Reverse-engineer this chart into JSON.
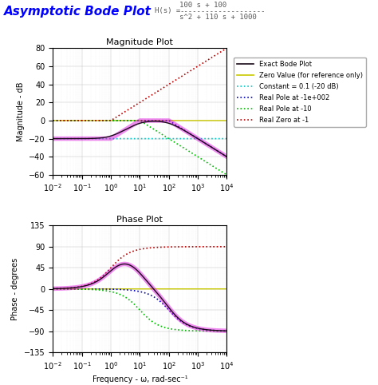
{
  "title": "Asymptotic Bode Plot",
  "tf_text_num": "100 s + 100",
  "tf_text_den": "s^2 + 110 s + 1000",
  "omega_range": [
    -2,
    4
  ],
  "mag_ylim": [
    -60,
    80
  ],
  "mag_yticks": [
    -60,
    -40,
    -20,
    0,
    20,
    40,
    60,
    80
  ],
  "phase_ylim": [
    -135,
    135
  ],
  "phase_yticks": [
    -135,
    -90,
    -45,
    0,
    45,
    90,
    135
  ],
  "colors": {
    "exact": "#1a0a1a",
    "zero_ref": "#c8c800",
    "constant": "#00c8c8",
    "pole100": "#0000bb",
    "pole10": "#00bb00",
    "zero1": "#bb0000",
    "asymptotic": "#dd00dd"
  },
  "legend_labels": [
    "Exact Bode Plot",
    "Zero Value (for reference only)",
    "Constant = 0.1 (-20 dB)",
    "Real Pole at -1e+002",
    "Real Pole at -10",
    "Real Zero at -1"
  ],
  "mag_ylabel": "Magnitude - dB",
  "phase_xlabel": "Frequency - ω, rad-sec⁻¹",
  "phase_ylabel": "Phase - degrees"
}
